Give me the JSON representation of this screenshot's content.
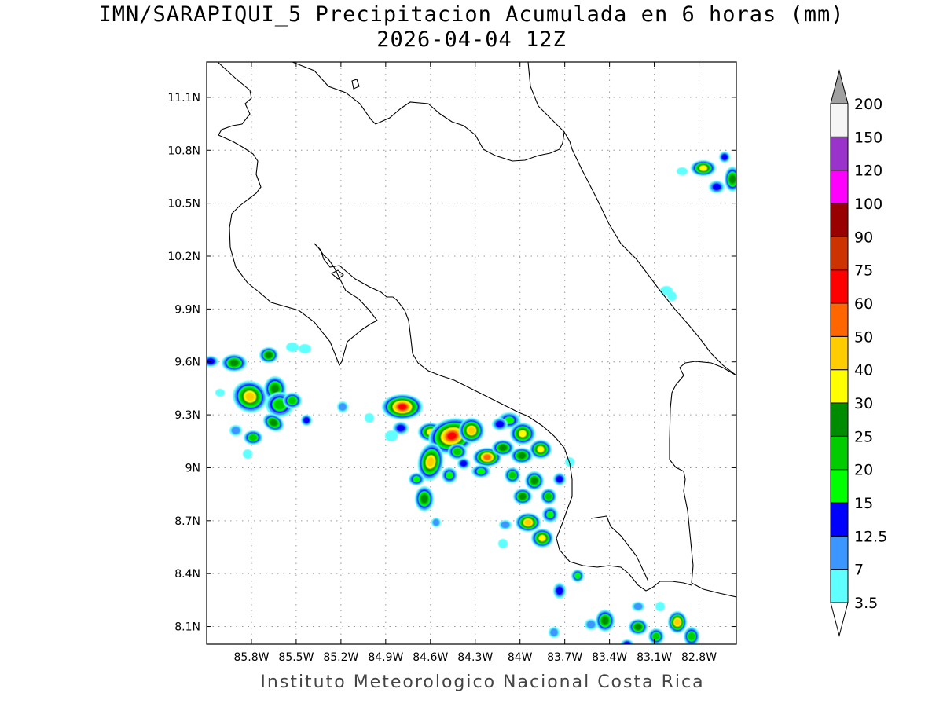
{
  "title_line1": "IMN/SARAPIQUI_5 Precipitacion Acumulada en 6 horas (mm)",
  "title_line2": "2026-04-04 12Z",
  "footer": "Instituto Meteorologico Nacional Costa Rica",
  "map": {
    "lon_range": [
      -86.1,
      -82.55
    ],
    "lat_range": [
      8.0,
      11.3
    ],
    "lat_ticks": [
      {
        "value": 11.1,
        "label": "11.1N"
      },
      {
        "value": 10.8,
        "label": "10.8N"
      },
      {
        "value": 10.5,
        "label": "10.5N"
      },
      {
        "value": 10.2,
        "label": "10.2N"
      },
      {
        "value": 9.9,
        "label": "9.9N"
      },
      {
        "value": 9.6,
        "label": "9.6N"
      },
      {
        "value": 9.3,
        "label": "9.3N"
      },
      {
        "value": 9.0,
        "label": "9N"
      },
      {
        "value": 8.7,
        "label": "8.7N"
      },
      {
        "value": 8.4,
        "label": "8.4N"
      },
      {
        "value": 8.1,
        "label": "8.1N"
      }
    ],
    "lon_ticks": [
      {
        "value": -85.8,
        "label": "85.8W"
      },
      {
        "value": -85.5,
        "label": "85.5W"
      },
      {
        "value": -85.2,
        "label": "85.2W"
      },
      {
        "value": -84.9,
        "label": "84.9W"
      },
      {
        "value": -84.6,
        "label": "84.6W"
      },
      {
        "value": -84.3,
        "label": "84.3W"
      },
      {
        "value": -84.0,
        "label": "84W"
      },
      {
        "value": -83.7,
        "label": "83.7W"
      },
      {
        "value": -83.4,
        "label": "83.4W"
      },
      {
        "value": -83.1,
        "label": "83.1W"
      },
      {
        "value": -82.8,
        "label": "82.8W"
      }
    ]
  },
  "colorbar": {
    "under_color": "#ffffff",
    "over_color": "#a0a0a0",
    "bins": [
      {
        "label": "3.5",
        "color": "#60ffff"
      },
      {
        "label": "7",
        "color": "#3c96ff"
      },
      {
        "label": "12.5",
        "color": "#0000ff"
      },
      {
        "label": "15",
        "color": "#00ff00"
      },
      {
        "label": "20",
        "color": "#00cc00"
      },
      {
        "label": "25",
        "color": "#008c00"
      },
      {
        "label": "30",
        "color": "#ffff00"
      },
      {
        "label": "40",
        "color": "#ffcc00"
      },
      {
        "label": "50",
        "color": "#ff6600"
      },
      {
        "label": "60",
        "color": "#ff0000"
      },
      {
        "label": "75",
        "color": "#cc3300"
      },
      {
        "label": "90",
        "color": "#990000"
      },
      {
        "label": "100",
        "color": "#ff00ff"
      },
      {
        "label": "120",
        "color": "#9933cc"
      },
      {
        "label": "150",
        "color": "#f5f5f5"
      },
      {
        "label": "200",
        "color": ""
      }
    ]
  }
}
